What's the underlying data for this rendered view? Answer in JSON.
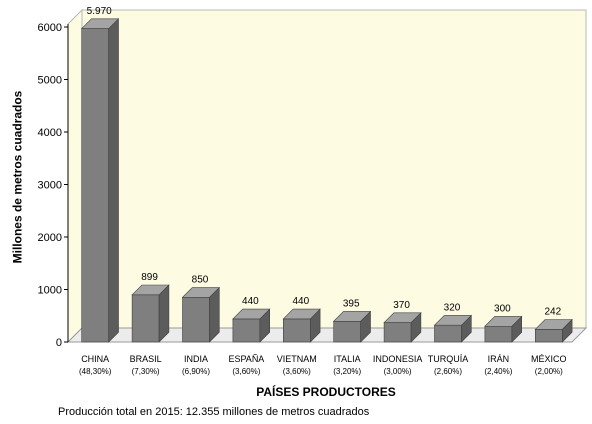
{
  "chart_data": {
    "type": "bar",
    "categories": [
      "CHINA",
      "BRASIL",
      "INDIA",
      "ESPAÑA",
      "VIETNAM",
      "ITALIA",
      "INDONESIA",
      "TURQUÍA",
      "IRÁN",
      "MÉXICO"
    ],
    "category_subtitles": [
      "(48,30%)",
      "(7,30%)",
      "(6,90%)",
      "(3,60%)",
      "(3,60%)",
      "(3,20%)",
      "(3,00%)",
      "(2,60%)",
      "(2,40%)",
      "(2,00%)"
    ],
    "values": [
      5970,
      899,
      850,
      440,
      440,
      395,
      370,
      320,
      300,
      242
    ],
    "data_labels": [
      "5.970",
      "899",
      "850",
      "440",
      "440",
      "395",
      "370",
      "320",
      "300",
      "242"
    ],
    "y_ticks": [
      0,
      1000,
      2000,
      3000,
      4000,
      5000,
      6000
    ],
    "ylim": [
      0,
      6000
    ],
    "ylabel": "Millones de metros cuadrados",
    "xlabel": "PAÍSES PRODUCTORES",
    "grid": false,
    "three_d": true
  },
  "footnote": "Producción total en 2015: 12.355 millones de metros cuadrados",
  "colors": {
    "plot_background": "#fefbe3",
    "bar_front": "#7f7f7f",
    "bar_side": "#5c5c5c",
    "bar_top": "#a4a4a4",
    "floor": "#ececec"
  }
}
